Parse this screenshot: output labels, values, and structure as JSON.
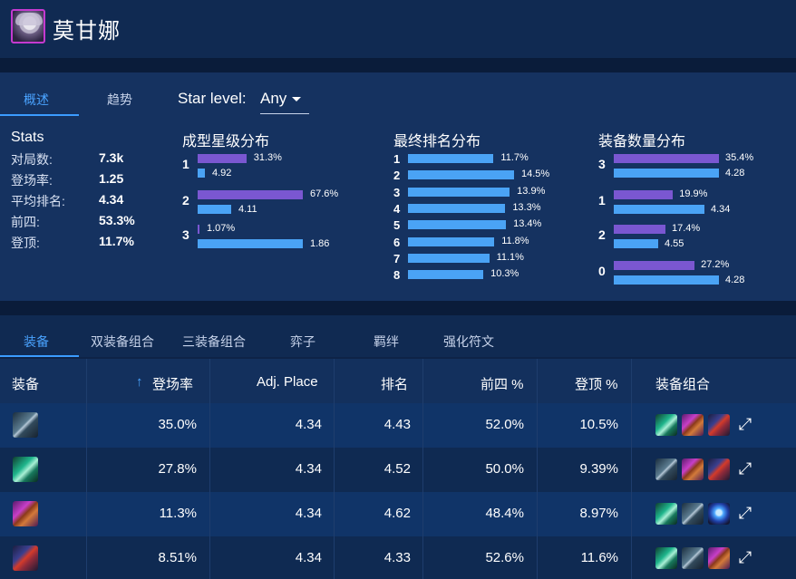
{
  "header": {
    "champion_name": "莫甘娜"
  },
  "tabs_top": {
    "overview": "概述",
    "trend": "趋势"
  },
  "star_level": {
    "label": "Star level:",
    "value": "Any"
  },
  "stats": {
    "title": "Stats",
    "rows": [
      {
        "label": "对局数:",
        "value": "7.3k"
      },
      {
        "label": "登场率:",
        "value": "1.25"
      },
      {
        "label": "平均排名:",
        "value": "4.34"
      },
      {
        "label": "前四:",
        "value": "53.3%"
      },
      {
        "label": "登顶:",
        "value": "11.7%"
      }
    ]
  },
  "star_dist": {
    "title": "成型星级分布",
    "groups": [
      {
        "key": "1",
        "pct_label": "31.3%",
        "pct": 31.3,
        "avg_label": "4.92",
        "avg": 4.92
      },
      {
        "key": "2",
        "pct_label": "67.6%",
        "pct": 67.6,
        "avg_label": "4.11",
        "avg": 4.11
      },
      {
        "key": "3",
        "pct_label": "1.07%",
        "pct": 1.07,
        "avg_label": "1.86",
        "avg": 1.86
      }
    ]
  },
  "placement_dist": {
    "title": "最终排名分布",
    "rows": [
      {
        "key": "1",
        "label": "11.7%",
        "value": 11.7
      },
      {
        "key": "2",
        "label": "14.5%",
        "value": 14.5
      },
      {
        "key": "3",
        "label": "13.9%",
        "value": 13.9
      },
      {
        "key": "4",
        "label": "13.3%",
        "value": 13.3
      },
      {
        "key": "5",
        "label": "13.4%",
        "value": 13.4
      },
      {
        "key": "6",
        "label": "11.8%",
        "value": 11.8
      },
      {
        "key": "7",
        "label": "11.1%",
        "value": 11.1
      },
      {
        "key": "8",
        "label": "10.3%",
        "value": 10.3
      }
    ]
  },
  "item_count_dist": {
    "title": "装备数量分布",
    "groups": [
      {
        "key": "3",
        "pct_label": "35.4%",
        "pct": 35.4,
        "avg_label": "4.28",
        "avg": 4.28
      },
      {
        "key": "1",
        "pct_label": "19.9%",
        "pct": 19.9,
        "avg_label": "4.34",
        "avg": 4.34
      },
      {
        "key": "2",
        "pct_label": "17.4%",
        "pct": 17.4,
        "avg_label": "4.55",
        "avg": 4.55
      },
      {
        "key": "0",
        "pct_label": "27.2%",
        "pct": 27.2,
        "avg_label": "4.28",
        "avg": 4.28
      }
    ]
  },
  "tabs_bottom": [
    "装备",
    "双装备组合",
    "三装备组合",
    "弈子",
    "羁绊",
    "强化符文"
  ],
  "table": {
    "headers": {
      "item": "装备",
      "play_rate": "登场率",
      "adj_place": "Adj. Place",
      "rank": "排名",
      "top4": "前四 %",
      "top1": "登顶 %",
      "combos": "装备组合"
    },
    "sort_arrow": "↑",
    "rows": [
      {
        "icon": "blade-item-icon",
        "play_rate": "35.0%",
        "adj_place": "4.34",
        "rank": "4.43",
        "top4": "52.0%",
        "top1": "10.5%",
        "combo_icons": [
          "claw-item-icon",
          "chest-item-icon",
          "staff-item-icon"
        ]
      },
      {
        "icon": "claw-item-icon",
        "play_rate": "27.8%",
        "adj_place": "4.34",
        "rank": "4.52",
        "top4": "50.0%",
        "top1": "9.39%",
        "combo_icons": [
          "blade-item-icon",
          "chest-item-icon",
          "staff-item-icon"
        ]
      },
      {
        "icon": "chest-item-icon",
        "play_rate": "11.3%",
        "adj_place": "4.34",
        "rank": "4.62",
        "top4": "48.4%",
        "top1": "8.97%",
        "combo_icons": [
          "claw-item-icon",
          "blade-item-icon",
          "orb-item-icon"
        ]
      },
      {
        "icon": "staff-item-icon",
        "play_rate": "8.51%",
        "adj_place": "4.34",
        "rank": "4.33",
        "top4": "52.6%",
        "top1": "11.6%",
        "combo_icons": [
          "claw-item-icon",
          "blade-item-icon",
          "chest-item-icon"
        ]
      }
    ]
  },
  "colors": {
    "accent": "#3b9cff",
    "bar_purple": "#7a57d1",
    "bar_blue": "#4aa3f5"
  }
}
